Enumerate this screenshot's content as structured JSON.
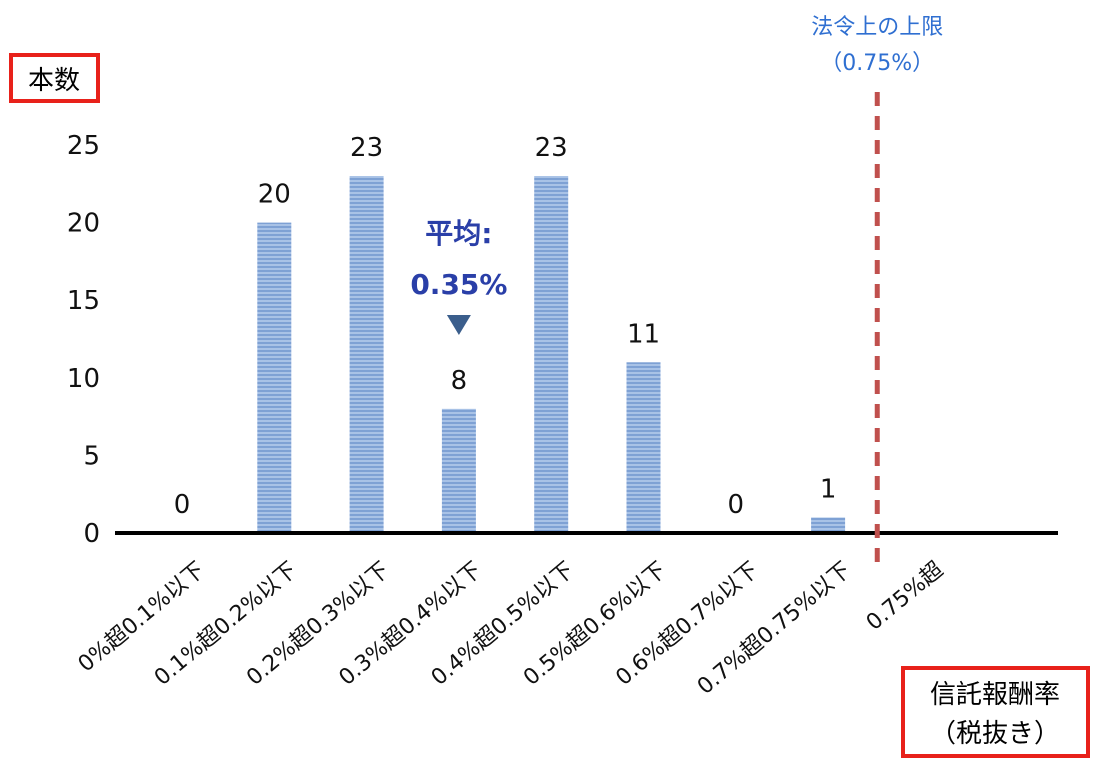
{
  "chart_data": {
    "type": "bar",
    "ylabel": "本数",
    "xlabel": [
      "信託報酬率",
      "（税抜き）"
    ],
    "categories": [
      "0%超0.1%以下",
      "0.1%超0.2%以下",
      "0.2%超0.3%以下",
      "0.3%超0.4%以下",
      "0.4%超0.5%以下",
      "0.5%超0.6%以下",
      "0.6%超0.7%以下",
      "0.7%超0.75%以下",
      "0.75%超"
    ],
    "values": [
      0,
      20,
      23,
      8,
      23,
      11,
      0,
      1,
      null
    ],
    "data_labels": [
      "0",
      "20",
      "23",
      "8",
      "23",
      "11",
      "0",
      "1",
      ""
    ],
    "ylim": [
      0,
      25
    ],
    "yticks": [
      0,
      5,
      10,
      15,
      20,
      25
    ],
    "grid": false,
    "colors": {
      "bar": "#7ea1d4",
      "bar_stripe": "#a8c2e6",
      "limit_line": "#c0504d",
      "limit_text": "#2f6fd1",
      "average_text": "#2a3fa8",
      "average_marker": "#3b5e8c",
      "label_box_border": "#e8211a"
    },
    "annotations": {
      "limit": {
        "lines": [
          "法令上の上限",
          "（0.75%）"
        ],
        "between_categories": [
          "0.7%超0.75%以下",
          "0.75%超"
        ]
      },
      "average": {
        "lines": [
          "平均:",
          "0.35%"
        ],
        "category": "0.3%超0.4%以下",
        "marker": "down-triangle"
      }
    }
  }
}
